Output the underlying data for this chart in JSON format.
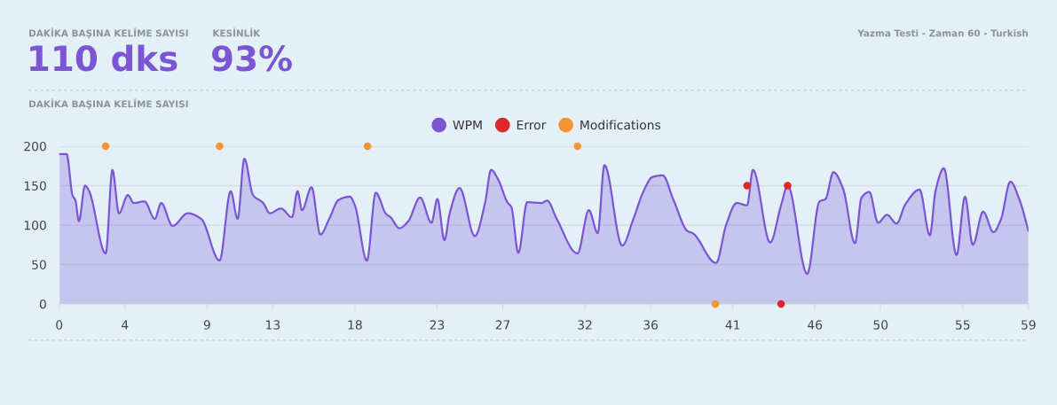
{
  "chart_data": {
    "type": "area",
    "title": "DAKİKA BAŞINA KELİME SAYISI",
    "annotations": [
      "DAKİKA BAŞINA KELİME SAYISI",
      "110 dks",
      "KESİNLİK",
      "93%",
      "Yazma Testi - Zaman 60 - Turkish"
    ],
    "series": [
      {
        "name": "WPM",
        "color": "#7b55d3",
        "x": [
          0,
          0.45,
          0.81,
          0.99,
          1.2,
          1.57,
          1.8,
          2.83,
          3.24,
          3.64,
          4.18,
          4.54,
          5.19,
          5.82,
          6.21,
          6.9,
          7.83,
          8.64,
          9.76,
          10.44,
          10.86,
          11.27,
          11.8,
          12.42,
          12.82,
          13.5,
          14.17,
          14.51,
          14.78,
          15.36,
          15.9,
          16.44,
          17.01,
          17.7,
          18.0,
          18.73,
          19.27,
          19.9,
          20.17,
          20.71,
          21.25,
          21.97,
          22.66,
          23.02,
          23.45,
          23.77,
          24.37,
          25.3,
          25.93,
          26.29,
          26.74,
          27.28,
          27.52,
          27.95,
          28.49,
          29.35,
          29.71,
          30.26,
          31.55,
          32.24,
          32.78,
          33.19,
          34.27,
          34.94,
          35.57,
          36.11,
          36.74,
          37.37,
          38.27,
          38.54,
          39.98,
          40.61,
          41.24,
          41.87,
          42.23,
          43.28,
          43.94,
          44.34,
          45.53,
          46.28,
          46.64,
          47.13,
          47.72,
          48.44,
          48.84,
          49.31,
          49.85,
          50.39,
          50.97,
          51.5,
          52.37,
          53.0,
          53.34,
          53.85,
          54.62,
          55.14,
          55.61,
          56.24,
          56.87,
          57.32,
          57.9,
          58.44,
          59.0
        ],
        "values": [
          190,
          190,
          138,
          131,
          105,
          150,
          144,
          64,
          170,
          115,
          138,
          128,
          130,
          108,
          128,
          99,
          115,
          108,
          55,
          143,
          108,
          184,
          138,
          128,
          115,
          121,
          110,
          143,
          119,
          148,
          88,
          108,
          132,
          136,
          125,
          55,
          141,
          114,
          110,
          96,
          105,
          135,
          103,
          133,
          81,
          115,
          147,
          86,
          129,
          170,
          157,
          129,
          123,
          65,
          129,
          128,
          131,
          109,
          64,
          119,
          90,
          176,
          74,
          107,
          143,
          161,
          163,
          133,
          92,
          90,
          52,
          101,
          128,
          125,
          170,
          78,
          125,
          150,
          38,
          130,
          133,
          167,
          146,
          77,
          135,
          142,
          103,
          113,
          102,
          126,
          145,
          87,
          143,
          172,
          62,
          136,
          75,
          117,
          91,
          107,
          155,
          133,
          93
        ]
      },
      {
        "name": "Error",
        "type": "scatter",
        "marker": "circle",
        "color": "#dc2828",
        "x": [
          41.87,
          43.94,
          44.34
        ],
        "values": [
          150,
          0,
          150
        ]
      },
      {
        "name": "Modifications",
        "type": "scatter",
        "marker": "circle",
        "color": "#f69332",
        "x": [
          2.83,
          9.76,
          18.77,
          31.55,
          39.94
        ],
        "values": [
          200,
          200,
          200,
          200,
          0
        ]
      }
    ],
    "xlim": [
      0,
      59
    ],
    "xticks": [
      0,
      4,
      9,
      13,
      18,
      23,
      27,
      32,
      36,
      41,
      46,
      50,
      55,
      59
    ],
    "ylim": [
      0,
      200
    ],
    "yticks": [
      0,
      50,
      100,
      150,
      200
    ],
    "grid": "y",
    "legend": "top",
    "line_style": "solid"
  }
}
